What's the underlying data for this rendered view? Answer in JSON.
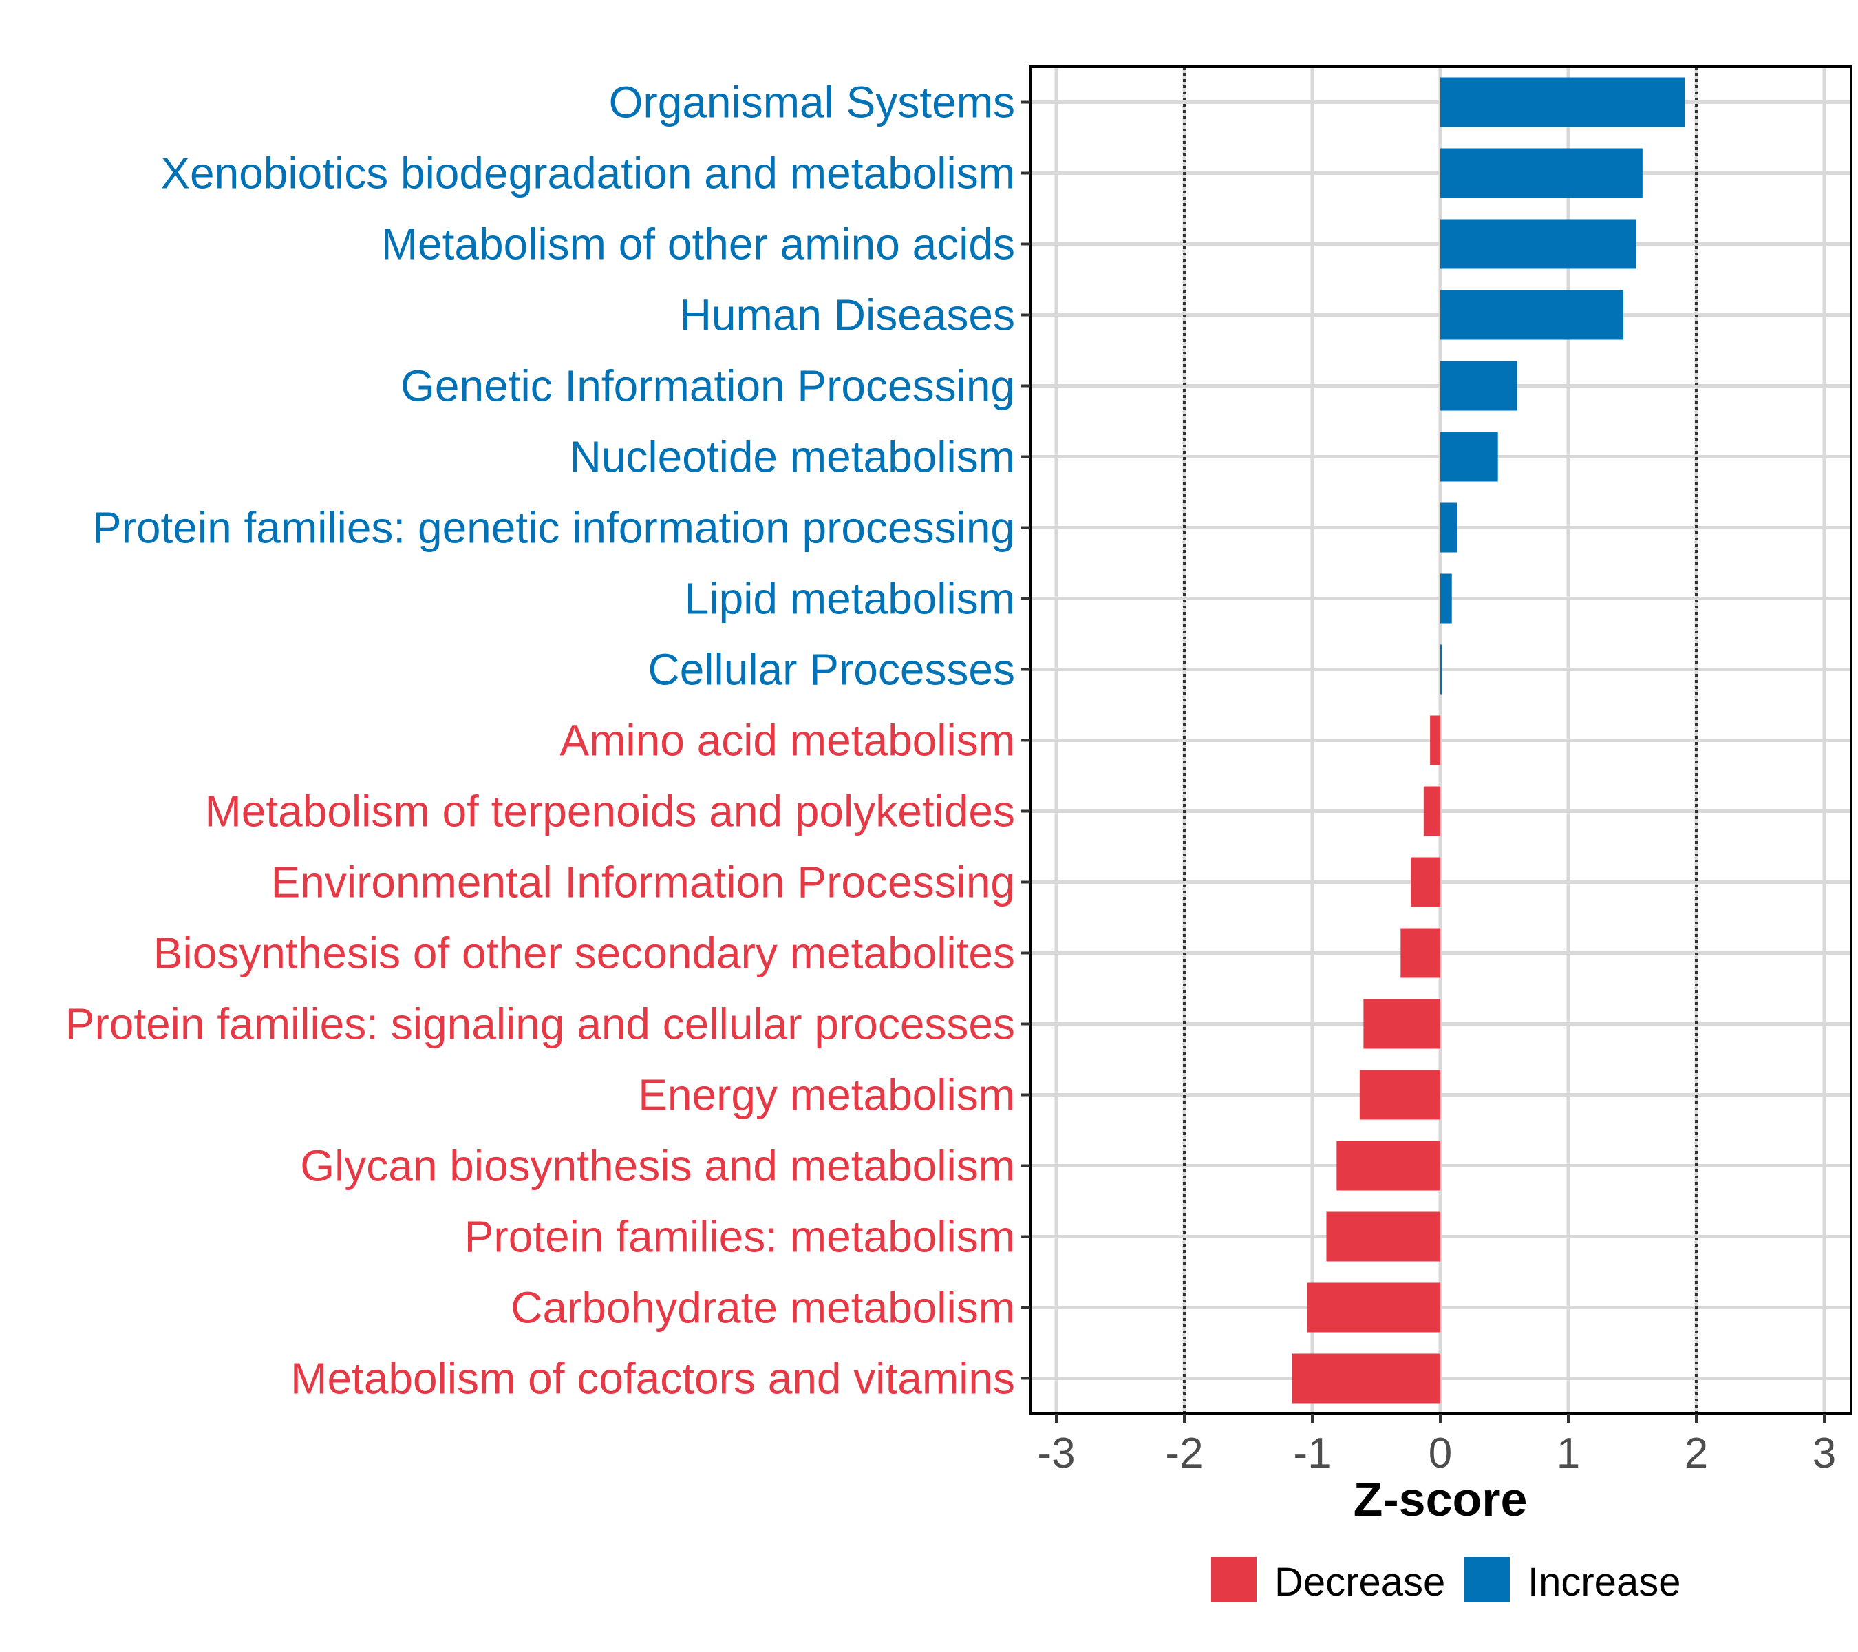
{
  "chart_data": {
    "type": "bar",
    "orientation": "horizontal",
    "xlabel": "Z-score",
    "xlim": [
      -3.1,
      3.1
    ],
    "xticks": [
      -3,
      -2,
      -1,
      0,
      1,
      2,
      3
    ],
    "reference_lines": [
      -2,
      2
    ],
    "grid": true,
    "colors": {
      "Increase": "#0072B5",
      "Decrease": "#E63946"
    },
    "categories": [
      "Organismal Systems",
      "Xenobiotics biodegradation and metabolism",
      "Metabolism of other amino acids",
      "Human Diseases",
      "Genetic Information Processing",
      "Nucleotide metabolism",
      "Protein families: genetic information processing",
      "Lipid metabolism",
      "Cellular Processes",
      "Amino acid metabolism",
      "Metabolism of terpenoids and polyketides",
      "Environmental Information Processing",
      "Biosynthesis of other secondary metabolites",
      "Protein families: signaling and cellular processes",
      "Energy metabolism",
      "Glycan biosynthesis and metabolism",
      "Protein families: metabolism",
      "Carbohydrate metabolism",
      "Metabolism of cofactors and vitamins"
    ],
    "values": [
      1.91,
      1.58,
      1.53,
      1.43,
      0.6,
      0.45,
      0.13,
      0.09,
      0.01,
      -0.08,
      -0.13,
      -0.23,
      -0.31,
      -0.6,
      -0.63,
      -0.81,
      -0.89,
      -1.04,
      -1.16
    ],
    "groups": [
      "Increase",
      "Increase",
      "Increase",
      "Increase",
      "Increase",
      "Increase",
      "Increase",
      "Increase",
      "Increase",
      "Decrease",
      "Decrease",
      "Decrease",
      "Decrease",
      "Decrease",
      "Decrease",
      "Decrease",
      "Decrease",
      "Decrease",
      "Decrease"
    ],
    "legend": {
      "position": "bottom",
      "entries": [
        {
          "label": "Decrease",
          "color": "#E63946"
        },
        {
          "label": "Increase",
          "color": "#0072B5"
        }
      ]
    }
  }
}
